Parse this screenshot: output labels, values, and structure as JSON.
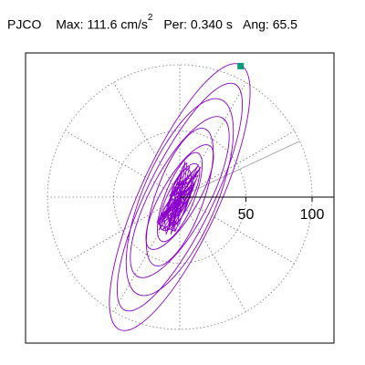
{
  "header": {
    "station": "PJCO",
    "max_label": "Max:",
    "max_value": "111.6",
    "max_unit": "cm/s",
    "max_unit_exp": "2",
    "per_label": "Per:",
    "per_value": "0.340 s",
    "ang_label": "Ang:",
    "ang_value": "65.5"
  },
  "chart_data": {
    "type": "polar-orbit",
    "units": "cm/s^2",
    "radial_ticks": [
      50,
      100
    ],
    "radial_circles": [
      50,
      100
    ],
    "spoke_interval_deg": 30,
    "reference_angle_deg": 25,
    "marker": {
      "x": 46,
      "y": 99,
      "color": "#0a9a7a"
    },
    "trace_color": "#8a00cc",
    "loops": [
      {
        "a": 110,
        "b": 30,
        "theta": 65.5
      },
      {
        "a": 95,
        "b": 25,
        "theta": 64
      },
      {
        "a": 80,
        "b": 28,
        "theta": 67
      },
      {
        "a": 68,
        "b": 22,
        "theta": 62
      },
      {
        "a": 55,
        "b": 18,
        "theta": 70
      },
      {
        "a": 45,
        "b": 14,
        "theta": 60
      },
      {
        "a": 36,
        "b": 11,
        "theta": 68
      },
      {
        "a": 28,
        "b": 9,
        "theta": 63
      },
      {
        "a": 22,
        "b": 7,
        "theta": 75
      },
      {
        "a": 16,
        "b": 6,
        "theta": 58
      }
    ]
  }
}
